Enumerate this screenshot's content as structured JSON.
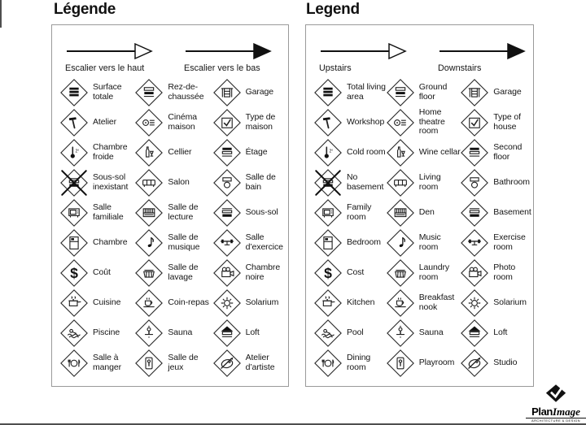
{
  "page": {
    "background": "#ffffff",
    "ink_color": "#161616",
    "panel_border_color": "#9a9a9a"
  },
  "logo": {
    "name_bold": "Plan",
    "name_italic": "Image",
    "tagline": "ARCHITECTURE & DESIGN",
    "mark": "diamond-check-icon"
  },
  "panels": [
    {
      "id": "legende",
      "title": "Légende",
      "arrows": [
        {
          "icon": "up-stairs-arrow-icon",
          "style": "hollow",
          "label": "Escalier vers le haut"
        },
        {
          "icon": "down-stairs-arrow-icon",
          "style": "solid",
          "label": "Escalier vers le bas"
        }
      ],
      "items": [
        {
          "icon": "total-living-area-icon",
          "label": "Surface totale"
        },
        {
          "icon": "ground-floor-icon",
          "label": "Rez-de-chaussée"
        },
        {
          "icon": "garage-icon",
          "label": "Garage"
        },
        {
          "icon": "workshop-icon",
          "label": "Atelier"
        },
        {
          "icon": "home-theatre-icon",
          "label": "Cinéma maison"
        },
        {
          "icon": "type-of-house-icon",
          "label": "Type de maison"
        },
        {
          "icon": "cold-room-icon",
          "label": "Chambre froide"
        },
        {
          "icon": "wine-cellar-icon",
          "label": "Cellier"
        },
        {
          "icon": "second-floor-icon",
          "label": "Étage"
        },
        {
          "icon": "no-basement-icon",
          "label": "Sous-sol inexistant"
        },
        {
          "icon": "living-room-icon",
          "label": "Salon"
        },
        {
          "icon": "bathroom-icon",
          "label": "Salle de bain"
        },
        {
          "icon": "family-room-icon",
          "label": "Salle familiale"
        },
        {
          "icon": "den-icon",
          "label": "Salle de lecture"
        },
        {
          "icon": "basement-icon",
          "label": "Sous-sol"
        },
        {
          "icon": "bedroom-icon",
          "label": "Chambre"
        },
        {
          "icon": "music-room-icon",
          "label": "Salle de musique"
        },
        {
          "icon": "exercise-room-icon",
          "label": "Salle d’exercice"
        },
        {
          "icon": "cost-icon",
          "label": "Coût"
        },
        {
          "icon": "laundry-room-icon",
          "label": "Salle de lavage"
        },
        {
          "icon": "photo-room-icon",
          "label": "Chambre noire"
        },
        {
          "icon": "kitchen-icon",
          "label": "Cuisine"
        },
        {
          "icon": "breakfast-nook-icon",
          "label": "Coin-repas"
        },
        {
          "icon": "solarium-icon",
          "label": "Solarium"
        },
        {
          "icon": "pool-icon",
          "label": "Piscine"
        },
        {
          "icon": "sauna-icon",
          "label": "Sauna"
        },
        {
          "icon": "loft-icon",
          "label": "Loft"
        },
        {
          "icon": "dining-room-icon",
          "label": "Salle à manger"
        },
        {
          "icon": "playroom-icon",
          "label": "Salle de jeux"
        },
        {
          "icon": "studio-icon",
          "label": "Atelier d’artiste"
        }
      ]
    },
    {
      "id": "legend",
      "title": "Legend",
      "arrows": [
        {
          "icon": "up-stairs-arrow-icon",
          "style": "hollow",
          "label": "Upstairs"
        },
        {
          "icon": "down-stairs-arrow-icon",
          "style": "solid",
          "label": "Downstairs"
        }
      ],
      "items": [
        {
          "icon": "total-living-area-icon",
          "label": "Total living area"
        },
        {
          "icon": "ground-floor-icon",
          "label": "Ground floor"
        },
        {
          "icon": "garage-icon",
          "label": "Garage"
        },
        {
          "icon": "workshop-icon",
          "label": "Workshop"
        },
        {
          "icon": "home-theatre-icon",
          "label": "Home theatre room"
        },
        {
          "icon": "type-of-house-icon",
          "label": "Type of house"
        },
        {
          "icon": "cold-room-icon",
          "label": "Cold room"
        },
        {
          "icon": "wine-cellar-icon",
          "label": "Wine cellar"
        },
        {
          "icon": "second-floor-icon",
          "label": "Second floor"
        },
        {
          "icon": "no-basement-icon",
          "label": "No basement"
        },
        {
          "icon": "living-room-icon",
          "label": "Living room"
        },
        {
          "icon": "bathroom-icon",
          "label": "Bathroom"
        },
        {
          "icon": "family-room-icon",
          "label": "Family room"
        },
        {
          "icon": "den-icon",
          "label": "Den"
        },
        {
          "icon": "basement-icon",
          "label": "Basement"
        },
        {
          "icon": "bedroom-icon",
          "label": "Bedroom"
        },
        {
          "icon": "music-room-icon",
          "label": "Music room"
        },
        {
          "icon": "exercise-room-icon",
          "label": "Exercise room"
        },
        {
          "icon": "cost-icon",
          "label": "Cost"
        },
        {
          "icon": "laundry-room-icon",
          "label": "Laundry room"
        },
        {
          "icon": "photo-room-icon",
          "label": "Photo room"
        },
        {
          "icon": "kitchen-icon",
          "label": "Kitchen"
        },
        {
          "icon": "breakfast-nook-icon",
          "label": "Breakfast nook"
        },
        {
          "icon": "solarium-icon",
          "label": "Solarium"
        },
        {
          "icon": "pool-icon",
          "label": "Pool"
        },
        {
          "icon": "sauna-icon",
          "label": "Sauna"
        },
        {
          "icon": "loft-icon",
          "label": "Loft"
        },
        {
          "icon": "dining-room-icon",
          "label": "Dining room"
        },
        {
          "icon": "playroom-icon",
          "label": "Playroom"
        },
        {
          "icon": "studio-icon",
          "label": "Studio"
        }
      ]
    }
  ]
}
